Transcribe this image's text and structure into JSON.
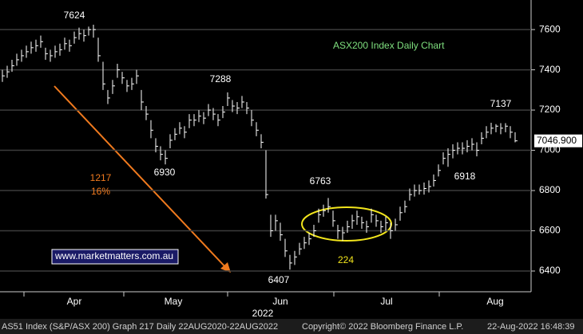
{
  "chart_data": {
    "type": "ohlc",
    "title": "ASX200 Index Daily Chart",
    "color": "#ffffff",
    "grid": true,
    "ylim": [
      6297,
      7747
    ],
    "yticks": [
      6400,
      6600,
      6800,
      7000,
      7200,
      7400,
      7600
    ],
    "months": [
      "Apr",
      "May",
      "Jun",
      "Jul",
      "Aug"
    ],
    "year": "2022",
    "close": [
      7370,
      7390,
      7420,
      7450,
      7470,
      7490,
      7510,
      7520,
      7540,
      7480,
      7470,
      7490,
      7500,
      7530,
      7520,
      7560,
      7580,
      7570,
      7600,
      7600,
      7470,
      7330,
      7260,
      7320,
      7400,
      7360,
      7320,
      7330,
      7370,
      7240,
      7180,
      7100,
      7020,
      6980,
      6960,
      7050,
      7080,
      7110,
      7090,
      7150,
      7150,
      7170,
      7160,
      7200,
      7180,
      7150,
      7190,
      7260,
      7220,
      7210,
      7240,
      7210,
      7150,
      7100,
      7040,
      6780,
      6600,
      6650,
      6580,
      6500,
      6440,
      6470,
      6510,
      6540,
      6560,
      6600,
      6680,
      6700,
      6720,
      6650,
      6600,
      6590,
      6620,
      6650,
      6670,
      6640,
      6620,
      6680,
      6650,
      6620,
      6640,
      6600,
      6630,
      6690,
      6720,
      6780,
      6800,
      6800,
      6810,
      6820,
      6850,
      6900,
      6960,
      6980,
      7000,
      7010,
      7010,
      7020,
      7030,
      7000,
      7060,
      7090,
      7110,
      7120,
      7110,
      7120,
      7090,
      7047
    ],
    "high": [
      7400,
      7420,
      7450,
      7480,
      7500,
      7520,
      7540,
      7550,
      7570,
      7510,
      7500,
      7520,
      7530,
      7560,
      7550,
      7590,
      7610,
      7600,
      7615,
      7624,
      7560,
      7440,
      7300,
      7350,
      7430,
      7390,
      7350,
      7360,
      7400,
      7300,
      7220,
      7150,
      7060,
      7020,
      7000,
      7080,
      7110,
      7140,
      7120,
      7180,
      7180,
      7200,
      7190,
      7230,
      7210,
      7180,
      7220,
      7288,
      7250,
      7240,
      7270,
      7240,
      7200,
      7140,
      7080,
      7000,
      6680,
      6680,
      6640,
      6560,
      6480,
      6500,
      6540,
      6570,
      6590,
      6630,
      6710,
      6730,
      6763,
      6700,
      6630,
      6620,
      6650,
      6680,
      6700,
      6670,
      6650,
      6710,
      6680,
      6650,
      6670,
      6640,
      6660,
      6720,
      6750,
      6810,
      6830,
      6830,
      6840,
      6850,
      6880,
      6930,
      6990,
      7010,
      7030,
      7040,
      7040,
      7050,
      7060,
      7040,
      7090,
      7120,
      7137,
      7130,
      7135,
      7135,
      7120,
      7090
    ],
    "low": [
      7340,
      7360,
      7390,
      7420,
      7440,
      7460,
      7480,
      7490,
      7510,
      7450,
      7440,
      7460,
      7470,
      7500,
      7490,
      7530,
      7550,
      7540,
      7570,
      7560,
      7440,
      7300,
      7230,
      7280,
      7360,
      7330,
      7290,
      7300,
      7330,
      7200,
      7150,
      7060,
      6990,
      6950,
      6930,
      7010,
      7050,
      7080,
      7060,
      7110,
      7120,
      7140,
      7130,
      7170,
      7150,
      7120,
      7160,
      7220,
      7190,
      7180,
      7210,
      7180,
      7120,
      7070,
      7010,
      6760,
      6570,
      6600,
      6550,
      6470,
      6407,
      6430,
      6480,
      6510,
      6530,
      6570,
      6640,
      6670,
      6690,
      6620,
      6560,
      6550,
      6590,
      6610,
      6630,
      6610,
      6590,
      6640,
      6620,
      6590,
      6600,
      6560,
      6600,
      6650,
      6690,
      6750,
      6770,
      6780,
      6780,
      6790,
      6820,
      6870,
      6930,
      6918,
      6960,
      6980,
      6980,
      6990,
      7000,
      6970,
      7030,
      7060,
      7080,
      7090,
      7080,
      7090,
      7060,
      7040
    ],
    "last_value": 7046.9,
    "last_value_label": "7046.900",
    "annotations": [
      {
        "text": "7624",
        "color": "#ffffff"
      },
      {
        "text": "7288",
        "color": "#ffffff"
      },
      {
        "text": "6930",
        "color": "#ffffff"
      },
      {
        "text": "6763",
        "color": "#ffffff"
      },
      {
        "text": "6407",
        "color": "#ffffff"
      },
      {
        "text": "6918",
        "color": "#ffffff"
      },
      {
        "text": "7137",
        "color": "#ffffff"
      },
      {
        "text": "1217",
        "color": "#f07a1e"
      },
      {
        "text": "16%",
        "color": "#f07a1e"
      },
      {
        "text": "224",
        "color": "#f2e51c"
      }
    ],
    "source": "www.marketmatters.com.au",
    "footer": [
      "AS51 Index (S&P/ASX 200) Graph 217  Daily 22AUG2020-22AUG2022",
      "Copyright© 2022 Bloomberg Finance L.P.",
      "22-Aug-2022 16:48:39"
    ]
  }
}
